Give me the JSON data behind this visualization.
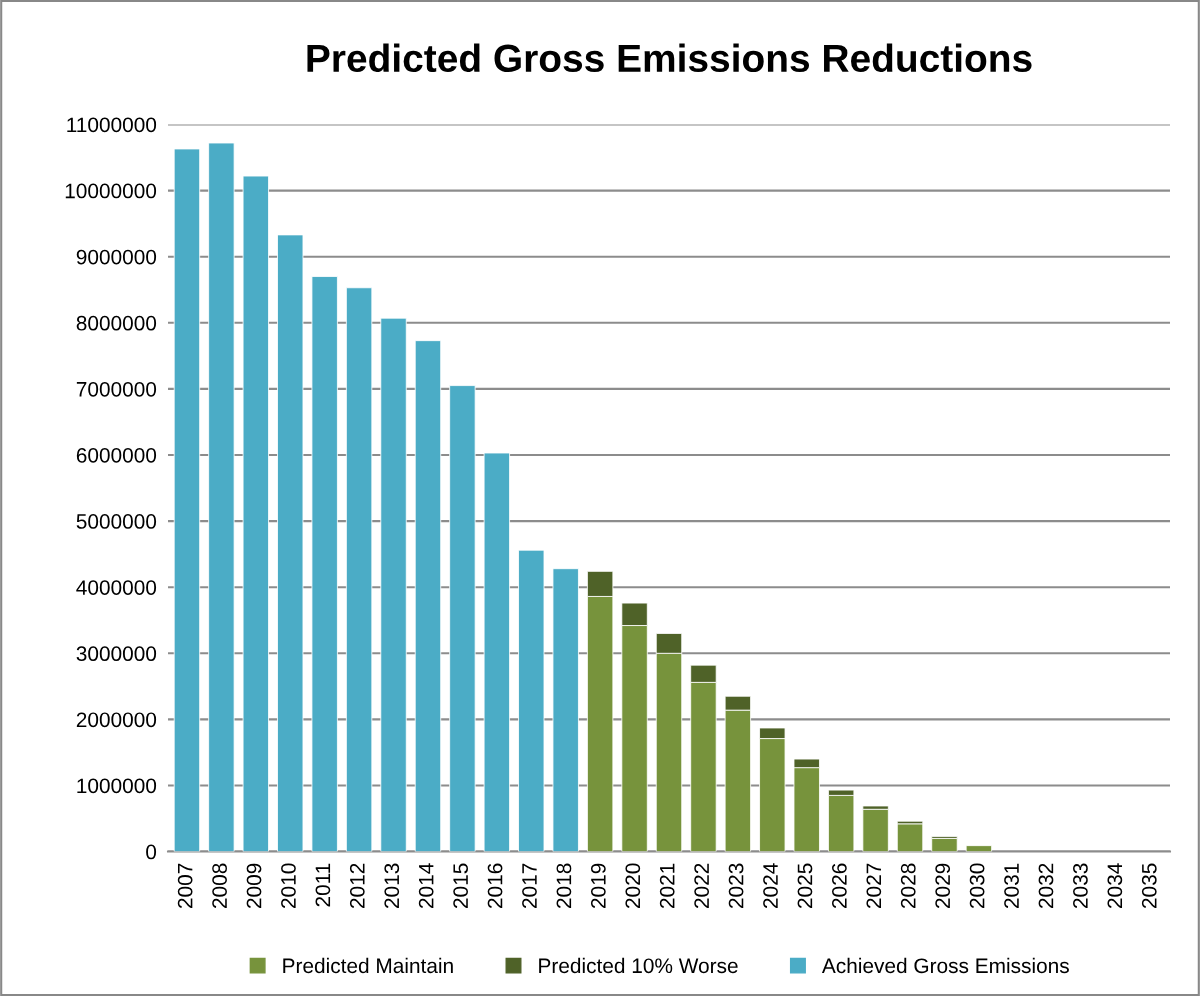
{
  "chart_data": {
    "type": "bar",
    "title": "Predicted Gross Emissions Reductions",
    "stacked": true,
    "categories": [
      "2007",
      "2008",
      "2009",
      "2010",
      "2011",
      "2012",
      "2013",
      "2014",
      "2015",
      "2016",
      "2017",
      "2018",
      "2019",
      "2020",
      "2021",
      "2022",
      "2023",
      "2024",
      "2025",
      "2026",
      "2027",
      "2028",
      "2029",
      "2030",
      "2031",
      "2032",
      "2033",
      "2034",
      "2035"
    ],
    "series": [
      {
        "name": "Predicted Maintain",
        "color": "#77933c",
        "values": [
          null,
          null,
          null,
          null,
          null,
          null,
          null,
          null,
          null,
          null,
          null,
          null,
          3860000,
          3420000,
          3000000,
          2560000,
          2140000,
          1710000,
          1270000,
          850000,
          640000,
          420000,
          200000,
          90000,
          0,
          0,
          0,
          0,
          0
        ]
      },
      {
        "name": "Predicted 10% Worse",
        "color": "#4f6228",
        "values": [
          null,
          null,
          null,
          null,
          null,
          null,
          null,
          null,
          null,
          null,
          null,
          null,
          380000,
          340000,
          300000,
          260000,
          210000,
          160000,
          130000,
          80000,
          50000,
          40000,
          30000,
          0,
          0,
          0,
          0,
          0,
          0
        ]
      },
      {
        "name": "Achieved Gross Emissions",
        "color": "#4bacc6",
        "values": [
          10630000,
          10720000,
          10220000,
          9330000,
          8700000,
          8530000,
          8070000,
          7730000,
          7050000,
          6030000,
          4560000,
          4280000,
          null,
          null,
          null,
          null,
          null,
          null,
          null,
          null,
          null,
          null,
          null,
          null,
          null,
          null,
          null,
          null,
          null
        ]
      }
    ],
    "ylim": [
      0,
      11000000
    ],
    "yticks": [
      0,
      1000000,
      2000000,
      3000000,
      4000000,
      5000000,
      6000000,
      7000000,
      8000000,
      9000000,
      10000000,
      11000000
    ],
    "grid": "y",
    "legend": "bottom"
  }
}
